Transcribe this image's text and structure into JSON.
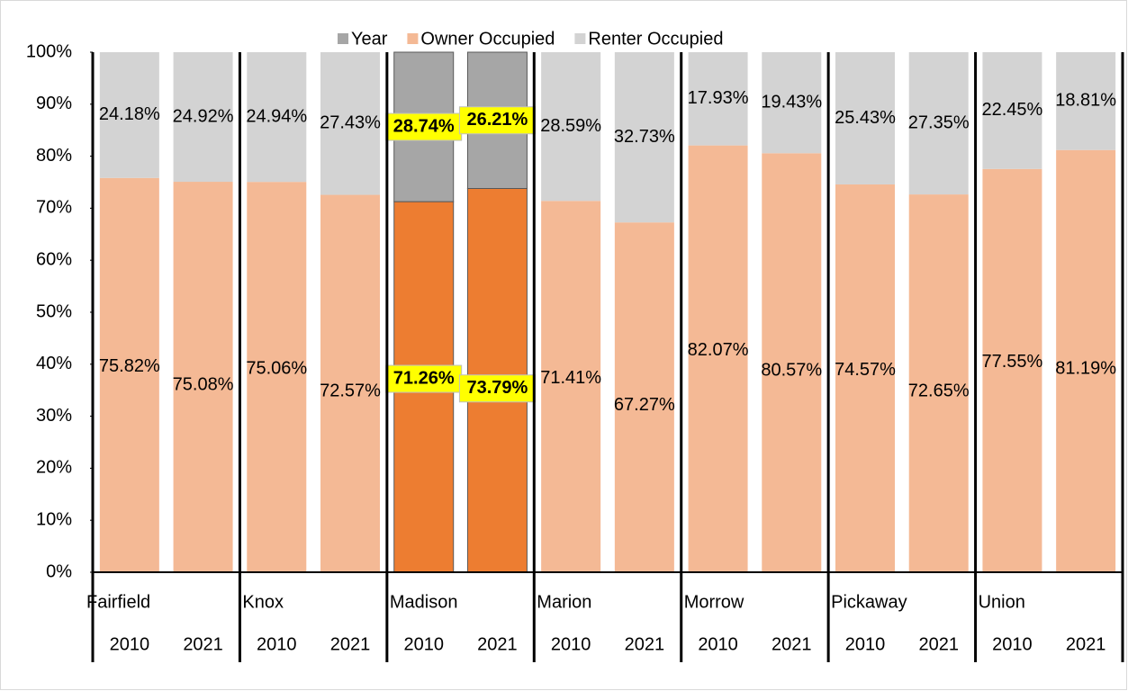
{
  "chart_data": {
    "type": "stacked_bar",
    "groups": [
      "Fairfield",
      "Knox",
      "Madison",
      "Marion",
      "Morrow",
      "Pickaway",
      "Union"
    ],
    "categories": [
      "2010",
      "2021",
      "2010",
      "2021",
      "2010",
      "2021",
      "2010",
      "2021",
      "2010",
      "2021",
      "2010",
      "2021",
      "2010",
      "2021"
    ],
    "series": [
      {
        "name": "Year",
        "color": "#a6a6a6",
        "values": [
          null,
          null,
          null,
          null,
          null,
          null,
          null,
          null,
          null,
          null,
          null,
          null,
          null,
          null
        ]
      },
      {
        "name": "Owner Occupied",
        "color": "#f4b995",
        "highlight_color": "#ed7d31",
        "values": [
          75.82,
          75.08,
          75.06,
          72.57,
          71.26,
          73.79,
          71.41,
          67.27,
          82.07,
          80.57,
          74.57,
          72.65,
          77.55,
          81.19
        ],
        "value_labels": [
          "75.82%",
          "75.08%",
          "75.06%",
          "72.57%",
          "71.26%",
          "73.79%",
          "71.41%",
          "67.27%",
          "82.07%",
          "80.57%",
          "74.57%",
          "72.65%",
          "77.55%",
          "81.19%"
        ]
      },
      {
        "name": "Renter Occupied",
        "color": "#d3d3d3",
        "highlight_color": "#a6a6a6",
        "values": [
          24.18,
          24.92,
          24.94,
          27.43,
          28.74,
          26.21,
          28.59,
          32.73,
          17.93,
          19.43,
          25.43,
          27.35,
          22.45,
          18.81
        ],
        "value_labels": [
          "24.18%",
          "24.92%",
          "24.94%",
          "27.43%",
          "28.74%",
          "26.21%",
          "28.59%",
          "32.73%",
          "17.93%",
          "19.43%",
          "25.43%",
          "27.35%",
          "22.45%",
          "18.81%"
        ]
      }
    ],
    "highlight": "Madison",
    "ylim": [
      0,
      100
    ],
    "yticks": [
      {
        "value": 0,
        "label": "0%"
      },
      {
        "value": 10,
        "label": "10%"
      },
      {
        "value": 20,
        "label": "20%"
      },
      {
        "value": 30,
        "label": "30%"
      },
      {
        "value": 40,
        "label": "40%"
      },
      {
        "value": 50,
        "label": "50%"
      },
      {
        "value": 60,
        "label": "60%"
      },
      {
        "value": 70,
        "label": "70%"
      },
      {
        "value": 80,
        "label": "80%"
      },
      {
        "value": 90,
        "label": "90%"
      },
      {
        "value": 100,
        "label": "100%"
      }
    ],
    "legend": "top"
  }
}
